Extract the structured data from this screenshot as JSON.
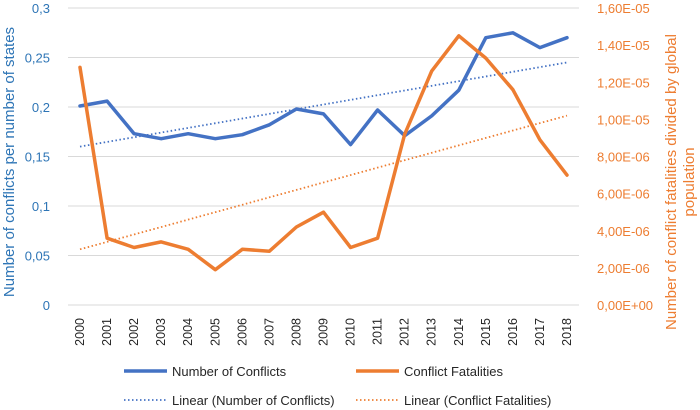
{
  "chart_data": {
    "type": "line",
    "title": "",
    "x": [
      "2000",
      "2001",
      "2002",
      "2003",
      "2004",
      "2005",
      "2006",
      "2007",
      "2008",
      "2009",
      "2010",
      "2011",
      "2012",
      "2013",
      "2014",
      "2015",
      "2016",
      "2017",
      "2018"
    ],
    "y_left": {
      "label": "Number of conflicts per number of states",
      "range": [
        0,
        0.3
      ],
      "ticks": [
        "0",
        "0,05",
        "0,1",
        "0,15",
        "0,2",
        "0,25",
        "0,3"
      ],
      "tick_values": [
        0,
        0.05,
        0.1,
        0.15,
        0.2,
        0.25,
        0.3
      ]
    },
    "y_right": {
      "label_line1": "Number of conflict fatalities divided by global",
      "label_line2": "population",
      "range": [
        0,
        1.6e-05
      ],
      "ticks": [
        "0,00E+00",
        "2,00E-06",
        "4,00E-06",
        "6,00E-06",
        "8,00E-06",
        "1,00E-05",
        "1,20E-05",
        "1,40E-05",
        "1,60E-05"
      ],
      "tick_values": [
        0,
        2e-06,
        4e-06,
        6e-06,
        8e-06,
        1e-05,
        1.2e-05,
        1.4e-05,
        1.6e-05
      ]
    },
    "series": [
      {
        "name": "Number of Conflicts",
        "axis": "left",
        "color": "#4472C4",
        "values": [
          0.201,
          0.206,
          0.173,
          0.168,
          0.173,
          0.168,
          0.172,
          0.182,
          0.198,
          0.193,
          0.162,
          0.197,
          0.171,
          0.191,
          0.217,
          0.27,
          0.275,
          0.26,
          0.27
        ]
      },
      {
        "name": "Conflict Fatalities",
        "axis": "right",
        "color": "#ED7D31",
        "values": [
          1.28e-05,
          3.6e-06,
          3.1e-06,
          3.4e-06,
          3e-06,
          1.9e-06,
          3e-06,
          2.9e-06,
          4.2e-06,
          5e-06,
          3.1e-06,
          3.6e-06,
          9.2e-06,
          1.26e-05,
          1.45e-05,
          1.33e-05,
          1.16e-05,
          8.9e-06,
          7e-06
        ]
      }
    ],
    "trendlines": [
      {
        "name": "Linear (Number of Conflicts)",
        "axis": "left",
        "color": "#4472C4",
        "start": 0.16,
        "end": 0.245
      },
      {
        "name": "Linear (Conflict Fatalities)",
        "axis": "right",
        "color": "#ED7D31",
        "start": 3e-06,
        "end": 1.02e-05
      }
    ],
    "legend": {
      "position": "bottom",
      "entries": [
        "Number of Conflicts",
        "Conflict Fatalities",
        "Linear (Number of Conflicts)",
        "Linear (Conflict Fatalities)"
      ]
    },
    "grid": true
  }
}
